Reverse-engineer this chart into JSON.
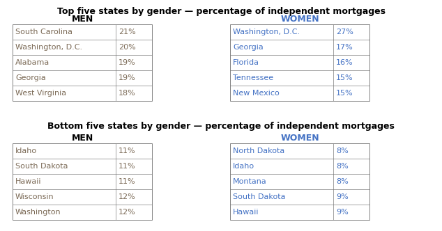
{
  "top_title": "Top five states by gender — percentage of independent mortgages",
  "bottom_title": "Bottom five states by gender — percentage of independent mortgages",
  "top_men_header": "MEN",
  "top_women_header": "WOMEN",
  "bottom_men_header": "MEN",
  "bottom_women_header": "WOMEN",
  "top_men": [
    [
      "South Carolina",
      "21%"
    ],
    [
      "Washington, D.C.",
      "20%"
    ],
    [
      "Alabama",
      "19%"
    ],
    [
      "Georgia",
      "19%"
    ],
    [
      "West Virginia",
      "18%"
    ]
  ],
  "top_women": [
    [
      "Washington, D.C.",
      "27%"
    ],
    [
      "Georgia",
      "17%"
    ],
    [
      "Florida",
      "16%"
    ],
    [
      "Tennessee",
      "15%"
    ],
    [
      "New Mexico",
      "15%"
    ]
  ],
  "bottom_men": [
    [
      "Idaho",
      "11%"
    ],
    [
      "South Dakota",
      "11%"
    ],
    [
      "Hawaii",
      "11%"
    ],
    [
      "Wisconsin",
      "12%"
    ],
    [
      "Washington",
      "12%"
    ]
  ],
  "bottom_women": [
    [
      "North Dakota",
      "8%"
    ],
    [
      "Idaho",
      "8%"
    ],
    [
      "Montana",
      "8%"
    ],
    [
      "South Dakota",
      "9%"
    ],
    [
      "Hawaii",
      "9%"
    ]
  ],
  "men_text_color": "#7b6a56",
  "women_text_color": "#4472c4",
  "men_header_color": "#000000",
  "women_header_color": "#4472c4",
  "title_color": "#000000",
  "border_color": "#7f7f7f",
  "bg_color": "#ffffff",
  "fontsize": 8.0,
  "header_fontsize": 9.0,
  "title_fontsize": 9.0
}
